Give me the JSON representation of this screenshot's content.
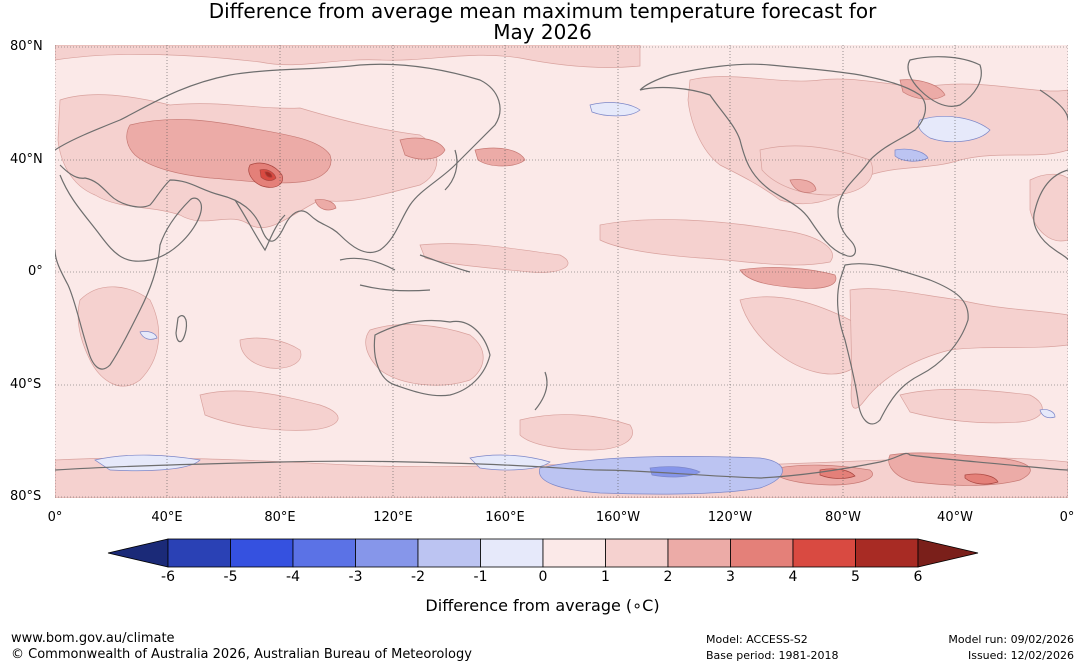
{
  "title": {
    "line1": "Difference from average mean maximum temperature forecast for",
    "line2": "May 2026"
  },
  "axes": {
    "lat_labels": [
      "80°N",
      "40°N",
      "0°",
      "40°S",
      "80°S"
    ],
    "lon_labels": [
      "0°",
      "40°E",
      "80°E",
      "120°E",
      "160°E",
      "160°W",
      "120°W",
      "80°W",
      "40°W",
      "0°"
    ]
  },
  "colorbar": {
    "title": "Difference from average (∘C)",
    "ticks": [
      "-6",
      "-5",
      "-4",
      "-3",
      "-2",
      "-1",
      "0",
      "1",
      "2",
      "3",
      "4",
      "5",
      "6"
    ],
    "colors": {
      "below_min": "#1b2a78",
      "n6": "#2a41b5",
      "n5": "#3551e0",
      "n4": "#5b72e6",
      "n3": "#8696ea",
      "n2": "#bcc4f2",
      "n1": "#e6e9fa",
      "p0": "#fbe9e8",
      "p1": "#f5d1cf",
      "p2": "#ecaba7",
      "p3": "#e48079",
      "p4": "#d94a41",
      "p5": "#a82b24",
      "above_max": "#7a1f1a"
    }
  },
  "footer": {
    "url": "www.bom.gov.au/climate",
    "copyright": "© Commonwealth of Australia 2026, Australian Bureau of Meteorology",
    "model": "Model: ACCESS-S2",
    "base_period": "Base period: 1981-2018",
    "model_run": "Model run: 09/02/2026",
    "issued": "Issued: 12/02/2026"
  }
}
